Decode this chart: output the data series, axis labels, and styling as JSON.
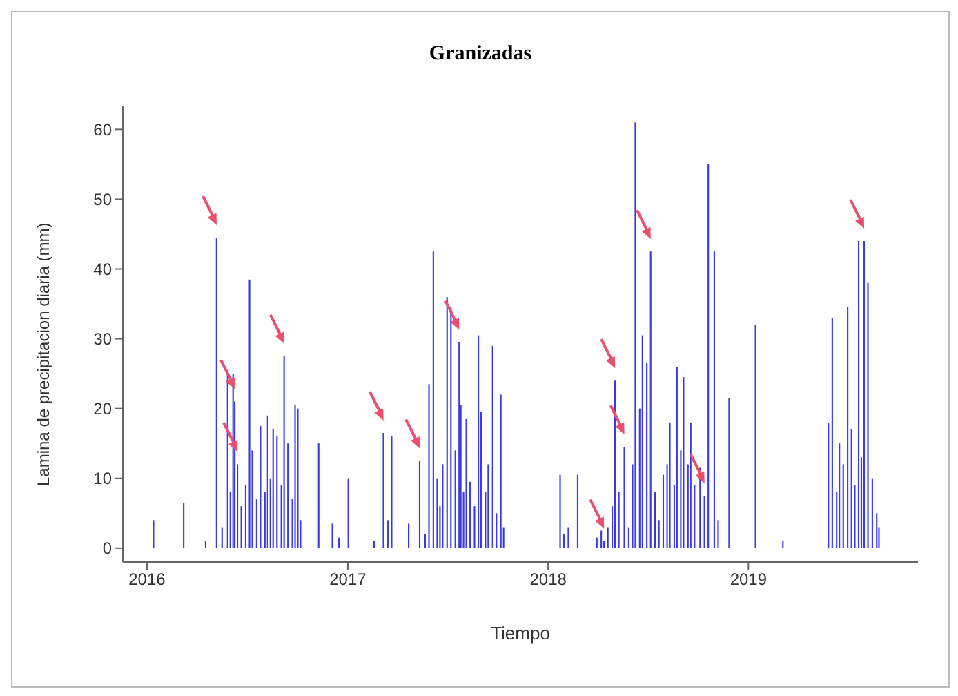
{
  "chart_data": {
    "type": "bar",
    "title": "Granizadas",
    "xlabel": "Tiempo",
    "ylabel": "Lamina de precipitacion diaria (mm)",
    "x": [
      "2016-01-13",
      "2016-03-08",
      "2016-04-17",
      "2016-05-07",
      "2016-05-17",
      "2016-05-27",
      "2016-06-01",
      "2016-06-06",
      "2016-06-09",
      "2016-06-14",
      "2016-06-21",
      "2016-06-29",
      "2016-07-06",
      "2016-07-11",
      "2016-07-19",
      "2016-07-26",
      "2016-08-03",
      "2016-08-08",
      "2016-08-13",
      "2016-08-18",
      "2016-08-25",
      "2016-09-02",
      "2016-09-07",
      "2016-09-14",
      "2016-09-22",
      "2016-09-27",
      "2016-10-02",
      "2016-10-07",
      "2016-11-09",
      "2016-12-04",
      "2016-12-16",
      "2017-01-02",
      "2017-02-18",
      "2017-03-07",
      "2017-03-15",
      "2017-03-22",
      "2017-04-22",
      "2017-05-12",
      "2017-05-22",
      "2017-05-29",
      "2017-06-06",
      "2017-06-13",
      "2017-06-18",
      "2017-06-23",
      "2017-07-01",
      "2017-07-08",
      "2017-07-16",
      "2017-07-23",
      "2017-07-26",
      "2017-07-31",
      "2017-08-05",
      "2017-08-12",
      "2017-08-20",
      "2017-08-27",
      "2017-09-01",
      "2017-09-09",
      "2017-09-14",
      "2017-09-22",
      "2017-09-29",
      "2017-10-07",
      "2017-10-12",
      "2018-01-23",
      "2018-01-30",
      "2018-02-07",
      "2018-02-24",
      "2018-03-31",
      "2018-04-08",
      "2018-04-13",
      "2018-04-20",
      "2018-04-28",
      "2018-05-03",
      "2018-05-10",
      "2018-05-20",
      "2018-05-28",
      "2018-06-04",
      "2018-06-09",
      "2018-06-17",
      "2018-06-22",
      "2018-06-30",
      "2018-07-07",
      "2018-07-15",
      "2018-07-22",
      "2018-07-30",
      "2018-08-06",
      "2018-08-11",
      "2018-08-19",
      "2018-08-24",
      "2018-08-31",
      "2018-09-05",
      "2018-09-13",
      "2018-09-18",
      "2018-09-25",
      "2018-10-05",
      "2018-10-13",
      "2018-10-20",
      "2018-10-31",
      "2018-11-07",
      "2018-11-27",
      "2019-01-14",
      "2019-03-05",
      "2019-05-27",
      "2019-06-03",
      "2019-06-11",
      "2019-06-16",
      "2019-06-23",
      "2019-07-01",
      "2019-07-08",
      "2019-07-14",
      "2019-07-21",
      "2019-07-26",
      "2019-07-31",
      "2019-08-07",
      "2019-08-15",
      "2019-08-23",
      "2019-08-27"
    ],
    "values": [
      4,
      6.5,
      1,
      44.5,
      3,
      25.5,
      8,
      25,
      21,
      12,
      6,
      9,
      38.5,
      14,
      7,
      17.5,
      8,
      19,
      10,
      17,
      16,
      9,
      27.5,
      15,
      7,
      20.5,
      20,
      4,
      15,
      3.5,
      1.5,
      10,
      1,
      16.5,
      4,
      16,
      3.5,
      12.5,
      2,
      23.5,
      42.5,
      10,
      6,
      12,
      36,
      34.5,
      14,
      29.5,
      20.5,
      8,
      18.5,
      9.5,
      6,
      30.5,
      19.5,
      8,
      12,
      29,
      5,
      22,
      3,
      10.5,
      2,
      3,
      10.5,
      1.5,
      2.5,
      1,
      3,
      6,
      24,
      8,
      14.5,
      3,
      12,
      61,
      20,
      30.5,
      26.5,
      42.5,
      8,
      4,
      10.5,
      12,
      18,
      9,
      26,
      14,
      24.5,
      12,
      18,
      9,
      11.5,
      7.5,
      55,
      42.5,
      4,
      21.5,
      32,
      1,
      18,
      33,
      8,
      15,
      12,
      34.5,
      17,
      9,
      44,
      13,
      44,
      38,
      10,
      5,
      3
    ],
    "color": "#3a3ae0",
    "xlim": [
      "2015-11-18",
      "2019-11-06"
    ],
    "xticks": [
      {
        "value": "2016-01-01",
        "label": "2016"
      },
      {
        "value": "2017-01-01",
        "label": "2017"
      },
      {
        "value": "2018-01-01",
        "label": "2018"
      },
      {
        "value": "2019-01-01",
        "label": "2019"
      }
    ],
    "ylim": [
      -2,
      63.3
    ],
    "yticks": [
      0,
      10,
      20,
      30,
      40,
      50,
      60
    ],
    "grid": false,
    "legend": false
  }
}
